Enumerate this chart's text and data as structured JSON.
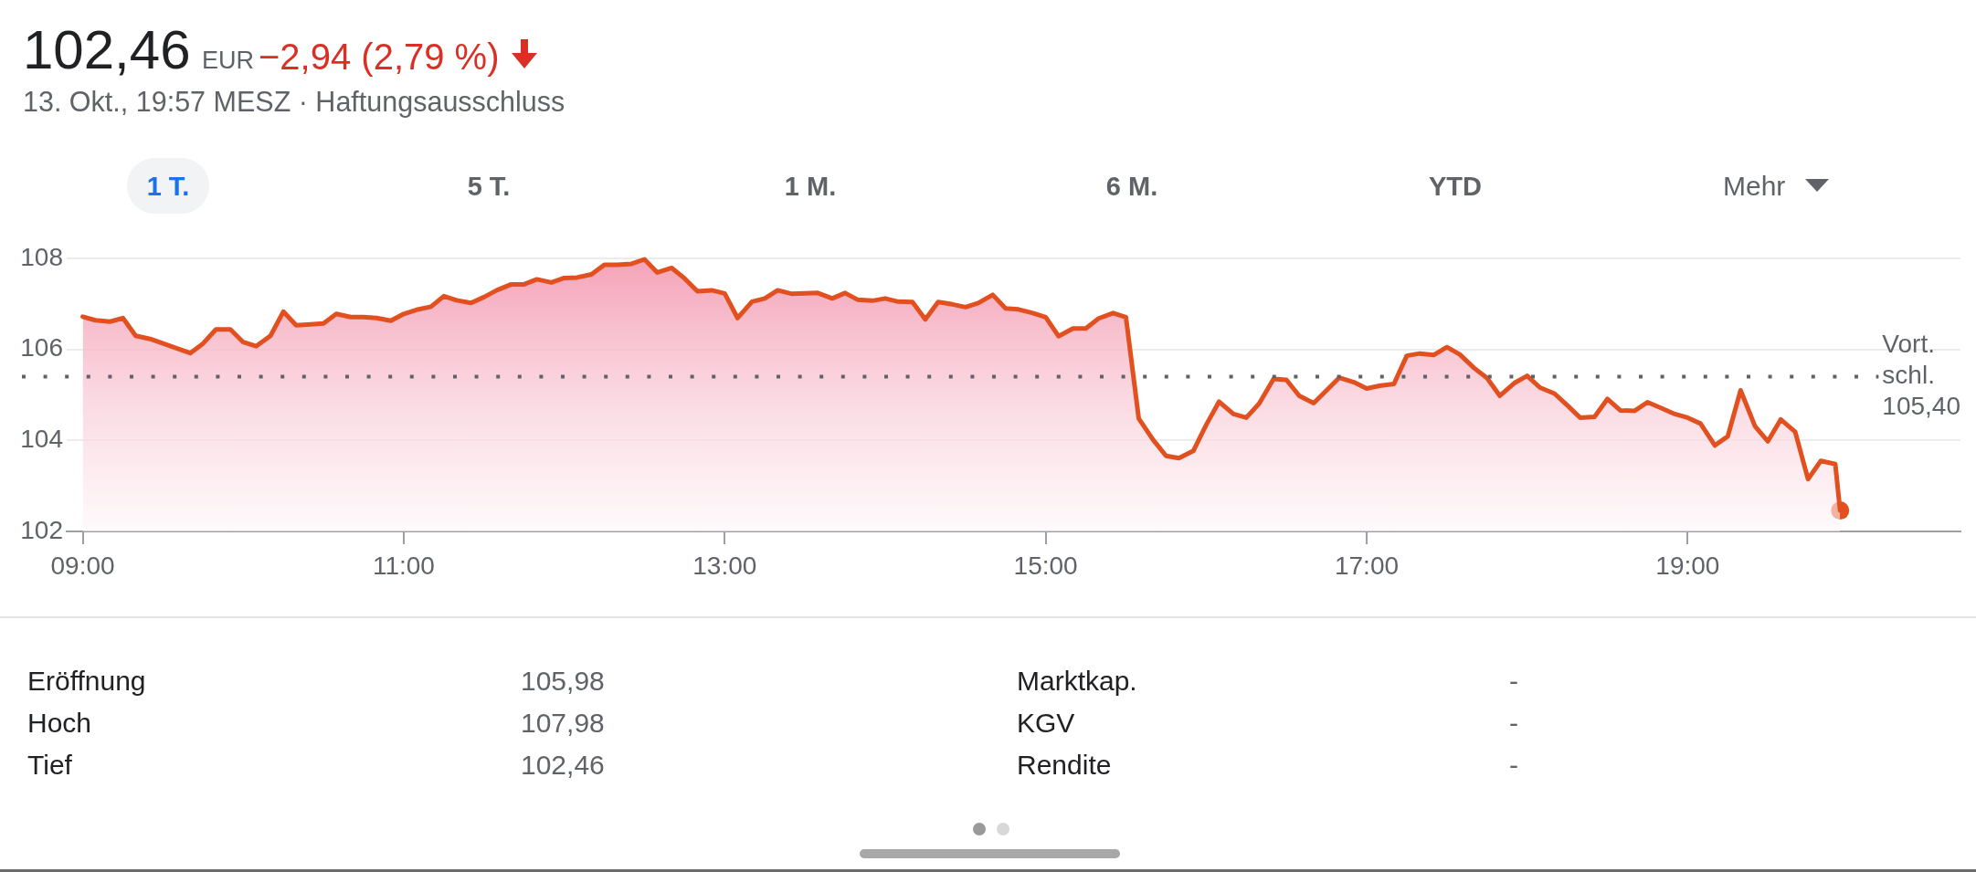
{
  "chart_data": {
    "type": "area",
    "title": "102,46",
    "subtitle": "13. Okt., 19:57 MESZ · Haftungsausschluss",
    "annotations": [
      "EUR",
      "−2,94 (2,79 %)",
      "1 T.",
      "5 T.",
      "1 M.",
      "6 M.",
      "YTD",
      "Mehr",
      "Eröffnung",
      "105,98",
      "Hoch",
      "107,98",
      "Tief",
      "102,46",
      "Marktkap.",
      "-",
      "KGV",
      "-",
      "Rendite",
      "-"
    ],
    "x": [
      9,
      9.08,
      9.17,
      9.25,
      9.33,
      9.42,
      9.5,
      9.58,
      9.67,
      9.75,
      9.83,
      9.92,
      10,
      10.08,
      10.17,
      10.25,
      10.33,
      10.42,
      10.5,
      10.58,
      10.67,
      10.75,
      10.83,
      10.92,
      11,
      11.08,
      11.17,
      11.25,
      11.33,
      11.42,
      11.5,
      11.58,
      11.67,
      11.75,
      11.83,
      11.92,
      12,
      12.08,
      12.17,
      12.25,
      12.33,
      12.42,
      12.5,
      12.58,
      12.67,
      12.75,
      12.83,
      12.92,
      13,
      13.08,
      13.17,
      13.25,
      13.33,
      13.42,
      13.5,
      13.58,
      13.67,
      13.75,
      13.83,
      13.92,
      14,
      14.08,
      14.17,
      14.25,
      14.33,
      14.42,
      14.5,
      14.58,
      14.67,
      14.75,
      14.83,
      14.92,
      15,
      15.08,
      15.17,
      15.25,
      15.33,
      15.42,
      15.5,
      15.58,
      15.67,
      15.75,
      15.83,
      15.92,
      16,
      16.08,
      16.17,
      16.25,
      16.33,
      16.42,
      16.5,
      16.58,
      16.67,
      16.75,
      16.83,
      16.92,
      17,
      17.08,
      17.17,
      17.25,
      17.33,
      17.42,
      17.5,
      17.58,
      17.67,
      17.75,
      17.83,
      17.92,
      18,
      18.08,
      18.17,
      18.25,
      18.33,
      18.42,
      18.5,
      18.58,
      18.67,
      18.75,
      18.83,
      18.92,
      19,
      19.08,
      19.17,
      19.25,
      19.33,
      19.42,
      19.5,
      19.58,
      19.67,
      19.75,
      19.83,
      19.92,
      19.95
    ],
    "series": [
      {
        "color": "#e2501f",
        "values": [
          106.72,
          106.64,
          106.61,
          106.69,
          106.3,
          106.23,
          106.13,
          106.03,
          105.92,
          106.13,
          106.44,
          106.44,
          106.16,
          106.07,
          106.3,
          106.83,
          106.53,
          106.55,
          106.57,
          106.78,
          106.71,
          106.71,
          106.69,
          106.63,
          106.78,
          106.87,
          106.94,
          107.17,
          107.08,
          107.02,
          107.15,
          107.3,
          107.43,
          107.43,
          107.54,
          107.47,
          107.57,
          107.58,
          107.65,
          107.86,
          107.86,
          107.88,
          107.98,
          107.69,
          107.79,
          107.56,
          107.28,
          107.3,
          107.23,
          106.69,
          107.05,
          107.12,
          107.3,
          107.22,
          107.23,
          107.24,
          107.12,
          107.24,
          107.09,
          107.07,
          107.12,
          107.05,
          107.04,
          106.66,
          107.04,
          106.99,
          106.93,
          107.02,
          107.2,
          106.9,
          106.88,
          106.8,
          106.71,
          106.29,
          106.46,
          106.46,
          106.68,
          106.8,
          106.71,
          104.48,
          104.01,
          103.66,
          103.61,
          103.77,
          104.34,
          104.85,
          104.58,
          104.5,
          104.81,
          105.35,
          105.33,
          104.98,
          104.82,
          105.1,
          105.38,
          105.28,
          105.14,
          105.2,
          105.24,
          105.86,
          105.91,
          105.88,
          106.05,
          105.89,
          105.59,
          105.37,
          104.98,
          105.26,
          105.42,
          105.16,
          105.03,
          104.77,
          104.5,
          104.52,
          104.91,
          104.66,
          104.65,
          104.84,
          104.72,
          104.58,
          104.5,
          104.37,
          103.89,
          104.09,
          105.1,
          104.31,
          103.98,
          104.46,
          104.19,
          103.15,
          103.55,
          103.48,
          102.46
        ]
      },
      {
        "type": "scatter",
        "color": "#e2501f",
        "x": [
          19.95
        ],
        "values": [
          102.46
        ],
        "marker": "circle"
      }
    ],
    "xlim": [
      8.9,
      20.7
    ],
    "xticks": [
      {
        "value": 9,
        "label": "09:00"
      },
      {
        "value": 11,
        "label": "11:00"
      },
      {
        "value": 13,
        "label": "13:00"
      },
      {
        "value": 15,
        "label": "15:00"
      },
      {
        "value": 17,
        "label": "17:00"
      },
      {
        "value": 19,
        "label": "19:00"
      }
    ],
    "ylim": [
      102,
      108
    ],
    "yticks": [
      102,
      104,
      106,
      108
    ],
    "grid": "y",
    "line_style": "solid",
    "ref_lines": [
      {
        "axis": "y",
        "value": 105.4,
        "label": "Vort. schl. 105,40",
        "color": "#5f6368",
        "line_style": "dotted"
      }
    ]
  }
}
